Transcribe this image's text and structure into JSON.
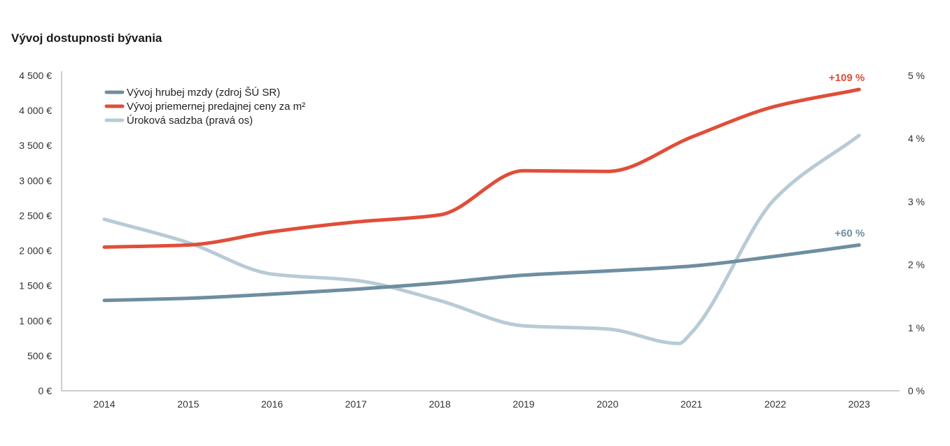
{
  "chart_data": {
    "type": "line",
    "title": "Vývoj dostupnosti bývania",
    "categories": [
      "2014",
      "2015",
      "2016",
      "2017",
      "2018",
      "2019",
      "2020",
      "2021",
      "2022",
      "2023"
    ],
    "y_left": {
      "lim": [
        0,
        4500
      ],
      "ticks": [
        {
          "value": 0,
          "label": "0 €"
        },
        {
          "value": 500,
          "label": "500 €"
        },
        {
          "value": 1000,
          "label": "1 000 €"
        },
        {
          "value": 1500,
          "label": "1 500 €"
        },
        {
          "value": 2000,
          "label": "2 000 €"
        },
        {
          "value": 2500,
          "label": "2 500 €"
        },
        {
          "value": 3000,
          "label": "3 000 €"
        },
        {
          "value": 3500,
          "label": "3 500 €"
        },
        {
          "value": 4000,
          "label": "4 000 €"
        },
        {
          "value": 4500,
          "label": "4 500 €"
        }
      ]
    },
    "y_right": {
      "lim": [
        0,
        5
      ],
      "ticks": [
        {
          "value": 0,
          "label": "0 %"
        },
        {
          "value": 1,
          "label": "1 %"
        },
        {
          "value": 2,
          "label": "2 %"
        },
        {
          "value": 3,
          "label": "3 %"
        },
        {
          "value": 4,
          "label": "4 %"
        },
        {
          "value": 5,
          "label": "5 %"
        }
      ]
    },
    "series": [
      {
        "key": "wage",
        "name": "Vývoj hrubej mzdy (zdroj ŠÚ SR)",
        "color": "#6e8ea1",
        "axis": "left",
        "x": [
          0,
          1,
          2,
          3,
          4,
          5,
          6,
          7,
          8,
          9
        ],
        "values": [
          1290,
          1320,
          1380,
          1450,
          1540,
          1650,
          1710,
          1780,
          1920,
          2080
        ],
        "annotation": "+60 %"
      },
      {
        "key": "price",
        "name": "Vývoj priemernej predajnej ceny za m²",
        "color": "#e04e39",
        "axis": "left",
        "x": [
          0,
          1,
          2,
          3,
          4,
          5,
          6,
          7,
          8,
          9
        ],
        "values": [
          2050,
          2080,
          2270,
          2410,
          2510,
          3140,
          3130,
          3620,
          4060,
          4300
        ],
        "annotation": "+109 %"
      },
      {
        "key": "rate",
        "name": "Úroková sadzba (pravá os)",
        "color": "#b7cbd6",
        "axis": "right",
        "x": [
          0,
          1,
          2,
          3,
          4,
          5,
          6,
          6.85,
          7,
          8,
          9
        ],
        "values": [
          2.72,
          2.35,
          1.85,
          1.75,
          1.43,
          1.03,
          0.98,
          0.75,
          0.92,
          3.05,
          4.05
        ],
        "annotation": ""
      }
    ]
  }
}
